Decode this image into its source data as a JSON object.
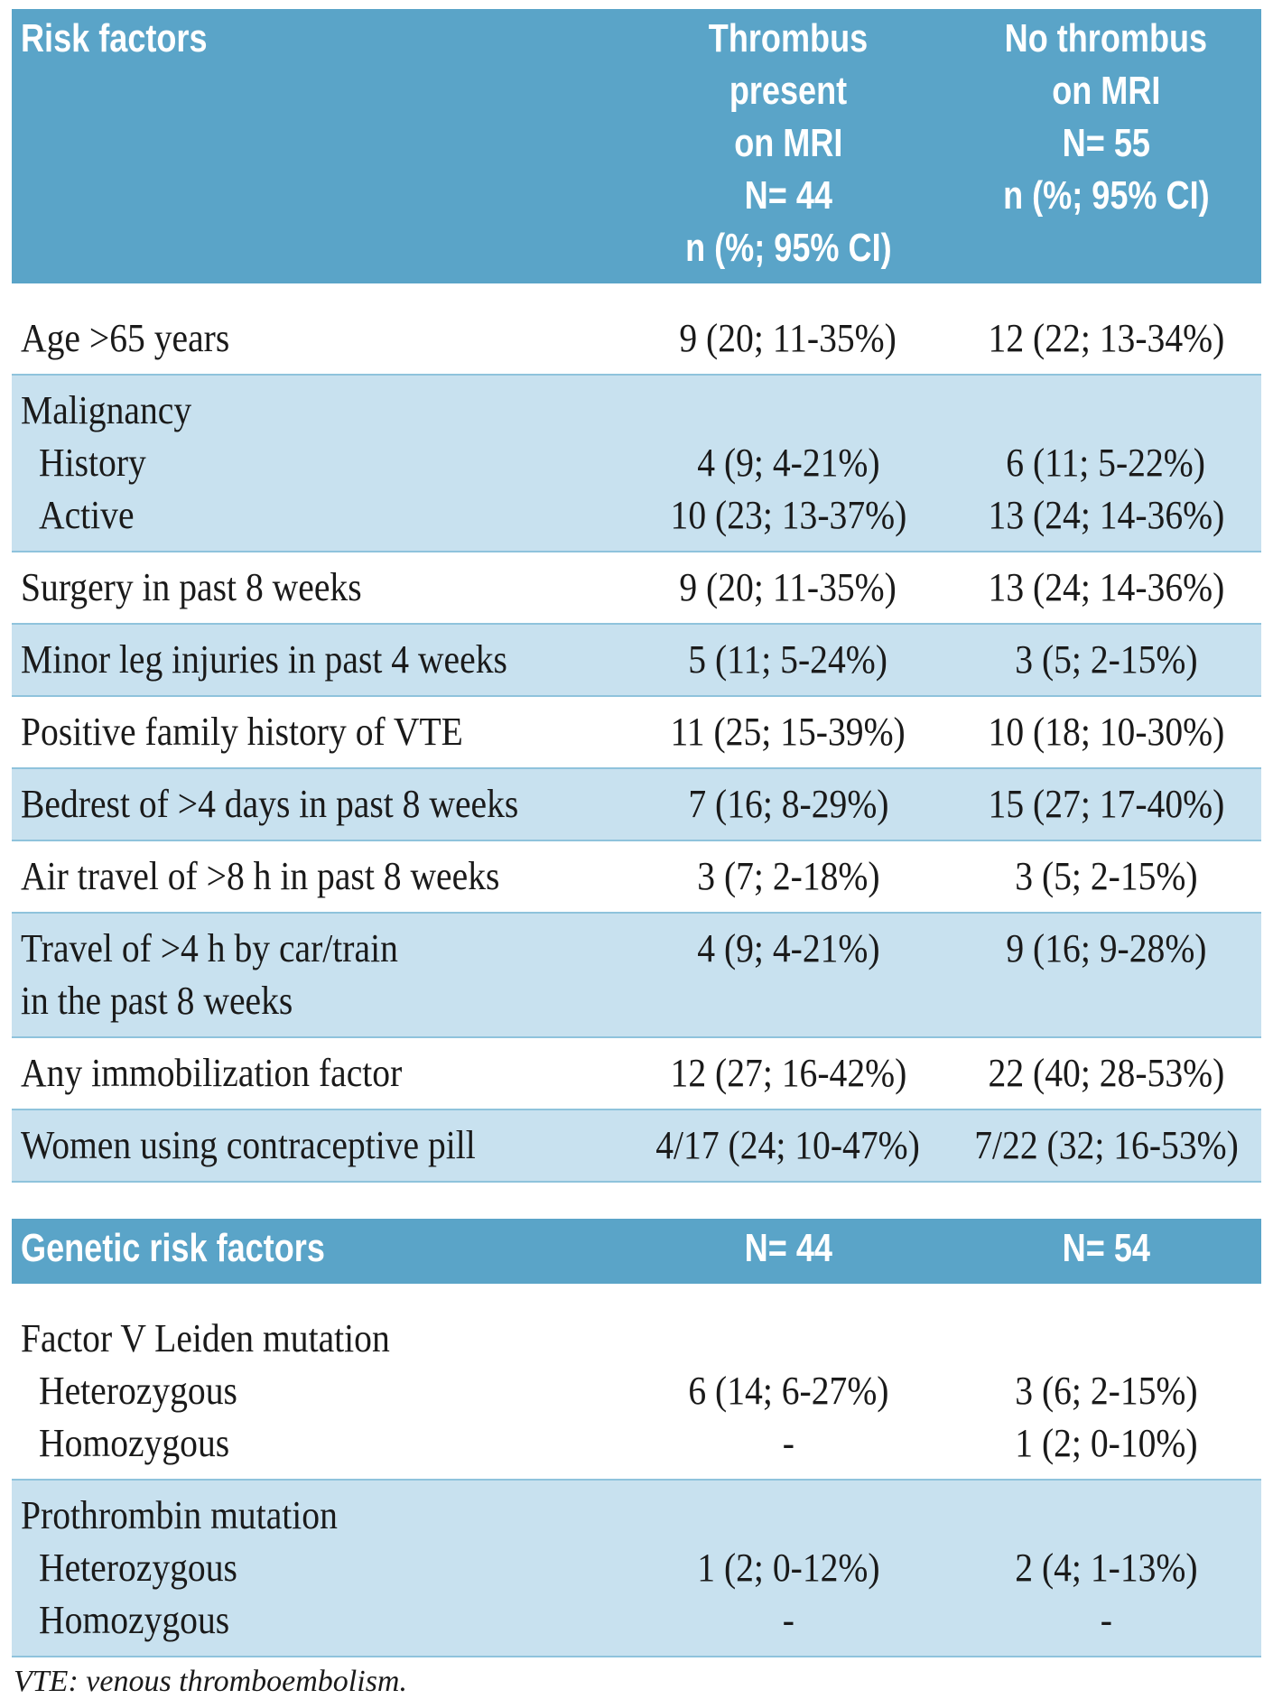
{
  "table1": {
    "headers": [
      [
        "Risk factors"
      ],
      [
        "Thrombus present",
        "on MRI",
        "N= 44",
        "n (%; 95% CI)"
      ],
      [
        "No thrombus",
        "on MRI",
        "N= 55",
        "n (%; 95% CI)"
      ]
    ],
    "rows": [
      {
        "label": [
          "Age >65 years"
        ],
        "v1": [
          "9 (20; 11-35%)"
        ],
        "v2": [
          "12 (22; 13-34%)"
        ]
      },
      {
        "label": [
          "Malignancy",
          "History",
          "Active"
        ],
        "v1": [
          "",
          "4 (9; 4-21%)",
          "10 (23; 13-37%)"
        ],
        "v2": [
          "",
          "6 (11; 5-22%)",
          "13 (24; 14-36%)"
        ]
      },
      {
        "label": [
          "Surgery in past 8 weeks"
        ],
        "v1": [
          "9 (20; 11-35%)"
        ],
        "v2": [
          "13 (24; 14-36%)"
        ]
      },
      {
        "label": [
          "Minor leg injuries in past 4 weeks"
        ],
        "v1": [
          "5 (11; 5-24%)"
        ],
        "v2": [
          "3 (5; 2-15%)"
        ]
      },
      {
        "label": [
          "Positive family history of VTE"
        ],
        "v1": [
          "11 (25; 15-39%)"
        ],
        "v2": [
          "10 (18; 10-30%)"
        ]
      },
      {
        "label": [
          "Bedrest of >4 days in past 8 weeks"
        ],
        "v1": [
          "7 (16; 8-29%)"
        ],
        "v2": [
          "15 (27; 17-40%)"
        ]
      },
      {
        "label": [
          "Air travel of >8 h in past 8 weeks"
        ],
        "v1": [
          "3 (7; 2-18%)"
        ],
        "v2": [
          "3 (5; 2-15%)"
        ]
      },
      {
        "label": [
          "Travel of >4 h by car/train",
          "in the past 8 weeks"
        ],
        "v1": [
          "4 (9; 4-21%)",
          ""
        ],
        "v2": [
          "9 (16; 9-28%)",
          ""
        ]
      },
      {
        "label": [
          "Any immobilization factor"
        ],
        "v1": [
          "12 (27; 16-42%)"
        ],
        "v2": [
          "22 (40; 28-53%)"
        ]
      },
      {
        "label": [
          "Women using contraceptive pill"
        ],
        "v1": [
          "4/17 (24; 10-47%)"
        ],
        "v2": [
          "7/22 (32; 16-53%)"
        ]
      }
    ]
  },
  "table2": {
    "headers": [
      [
        "Genetic risk factors"
      ],
      [
        "N= 44"
      ],
      [
        "N= 54"
      ]
    ],
    "rows": [
      {
        "label": [
          "Factor V Leiden mutation",
          "Heterozygous",
          "Homozygous"
        ],
        "v1": [
          "",
          "6 (14; 6-27%)",
          "-"
        ],
        "v2": [
          "",
          "3 (6; 2-15%)",
          "1 (2; 0-10%)"
        ]
      },
      {
        "label": [
          "Prothrombin mutation",
          "Heterozygous",
          "Homozygous"
        ],
        "v1": [
          "",
          "1 (2; 0-12%)",
          "-"
        ],
        "v2": [
          "",
          "2 (4; 1-13%)",
          "-"
        ]
      }
    ]
  },
  "footnote": "VTE: venous thromboembolism."
}
